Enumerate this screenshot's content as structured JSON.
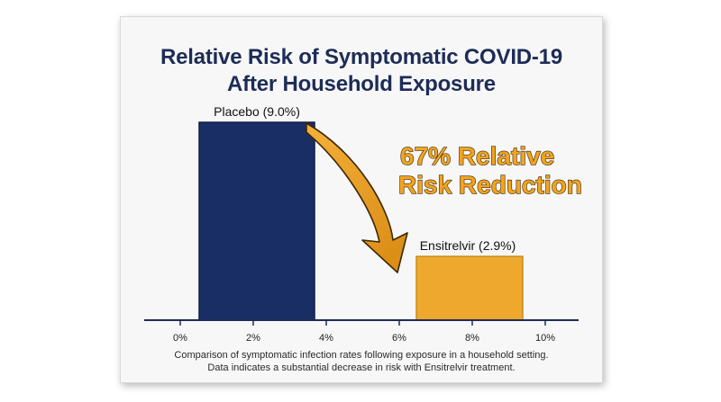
{
  "chart_data": {
    "type": "bar",
    "title_line1": "Relative Risk of Symptomatic COVID-19",
    "title_line2": "After Household Exposure",
    "categories": [
      "Placebo",
      "Ensitrelvir"
    ],
    "values": [
      9.0,
      2.9
    ],
    "bar_labels": [
      "Placebo (9.0%)",
      "Ensitrelvir (2.9%)"
    ],
    "x_ticks": [
      "0%",
      "2%",
      "4%",
      "6%",
      "8%",
      "10%"
    ],
    "ylim": [
      0,
      10
    ],
    "colors": [
      "#1a2e66",
      "#eea82d"
    ],
    "annotation_line1": "67% Relative",
    "annotation_line2": "Risk Reduction",
    "annotation_color": "#f2a41f",
    "caption_line1": "Comparison of symptomatic infection rates following exposure in a household setting.",
    "caption_line2": "Data indicates a substantial decrease in risk with Ensitrelvir treatment."
  }
}
